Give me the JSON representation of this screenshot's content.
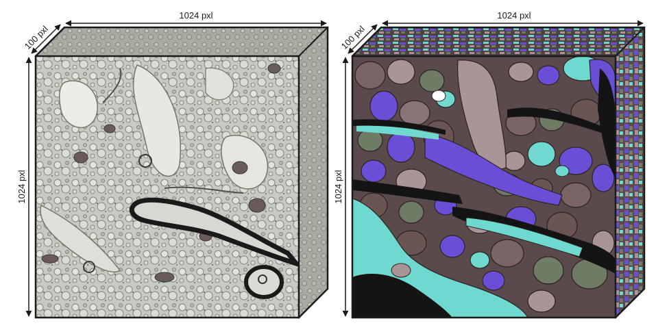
{
  "left_volume": {
    "width_label": "1024 pxl",
    "height_label": "1024 pxl",
    "depth_label": "100 pxl",
    "content": "electron-microscopy-image"
  },
  "right_volume": {
    "width_label": "1024 pxl",
    "height_label": "1024 pxl",
    "depth_label": "100 pxl",
    "content": "segmentation-label-map"
  },
  "colors": {
    "em_base": "#c9c9c3",
    "em_membrane": "#6e7a68",
    "em_dark": "#1c1c1c",
    "seg_purple": "#6a4fd6",
    "seg_cyan": "#6fd8cf",
    "seg_brown": "#6b5553",
    "seg_mauve": "#a99597",
    "seg_olive": "#6f7b64",
    "seg_dark": "#141414"
  }
}
